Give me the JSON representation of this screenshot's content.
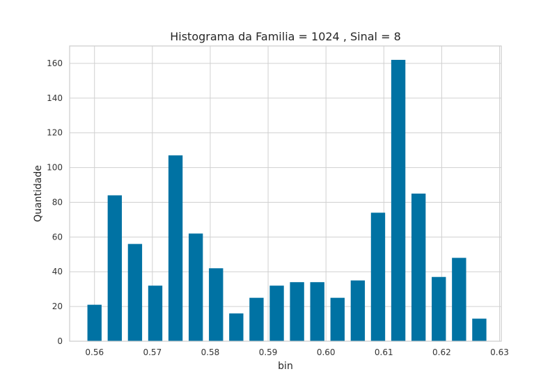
{
  "chart_data": {
    "type": "bar",
    "title": "Histograma da Familia = 1024 , Sinal = 8",
    "xlabel": "bin",
    "ylabel": "Quantidade",
    "x": [
      0.56,
      0.5635,
      0.567,
      0.5705,
      0.574,
      0.5775,
      0.581,
      0.5845,
      0.588,
      0.5915,
      0.595,
      0.5985,
      0.602,
      0.6055,
      0.609,
      0.6125,
      0.616,
      0.6195,
      0.623,
      0.6265
    ],
    "values": [
      21,
      84,
      56,
      32,
      107,
      62,
      42,
      16,
      25,
      32,
      34,
      34,
      25,
      35,
      74,
      162,
      85,
      37,
      48,
      13
    ],
    "xlim": [
      0.5557,
      0.6303
    ],
    "ylim": [
      0,
      170
    ],
    "xticks": [
      0.56,
      0.57,
      0.58,
      0.59,
      0.6,
      0.61,
      0.62,
      0.63
    ],
    "xtick_labels": [
      "0.56",
      "0.57",
      "0.58",
      "0.59",
      "0.60",
      "0.61",
      "0.62",
      "0.63"
    ],
    "yticks": [
      0,
      20,
      40,
      60,
      80,
      100,
      120,
      140,
      160
    ],
    "ytick_labels": [
      "0",
      "20",
      "40",
      "60",
      "80",
      "100",
      "120",
      "140",
      "160"
    ],
    "bar_color": "#0072a3",
    "grid": true,
    "grid_color": "#d0d0d0"
  }
}
